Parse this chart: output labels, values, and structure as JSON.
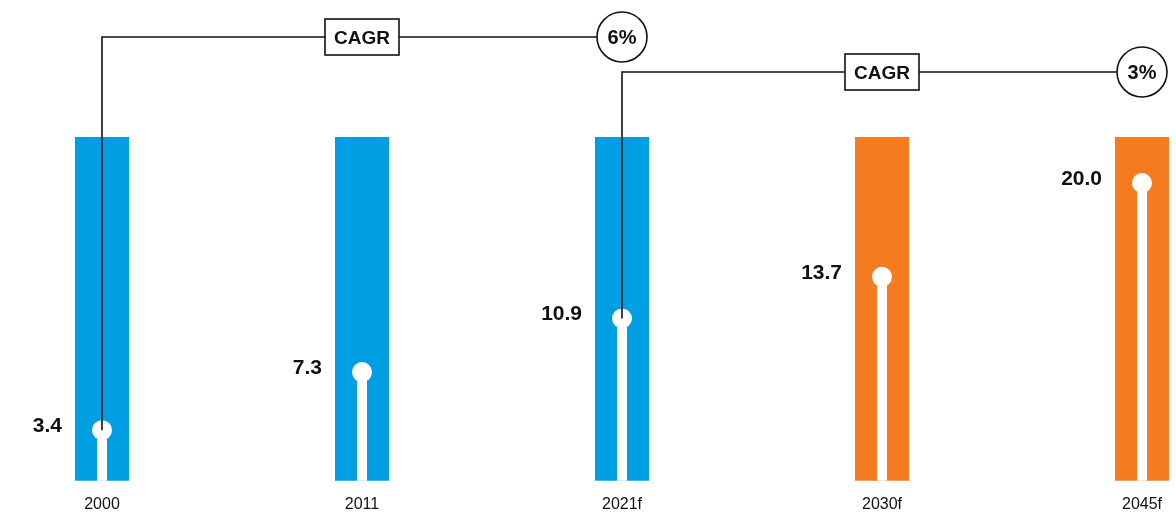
{
  "chart_data": {
    "type": "lollipop",
    "categories": [
      "2000",
      "2011",
      "2021f",
      "2030f",
      "2045f"
    ],
    "values": [
      3.4,
      7.3,
      10.9,
      13.7,
      20.0
    ],
    "value_labels": [
      "3.4",
      "7.3",
      "10.9",
      "13.7",
      "20.0"
    ],
    "color": "#ffffff",
    "bands": [
      {
        "axis": "x",
        "from": "2000",
        "to": "2000",
        "color": "#009fe3"
      },
      {
        "axis": "x",
        "from": "2011",
        "to": "2011",
        "color": "#009fe3"
      },
      {
        "axis": "x",
        "from": "2021f",
        "to": "2021f",
        "color": "#009fe3"
      },
      {
        "axis": "x",
        "from": "2030f",
        "to": "2030f",
        "color": "#f47b20"
      },
      {
        "axis": "x",
        "from": "2045f",
        "to": "2045f",
        "color": "#f47b20"
      }
    ],
    "tick_labels": "x",
    "legend": false,
    "annotations": [
      {
        "text": "CAGR",
        "x": "2000",
        "y": 3.4
      },
      "6%",
      {
        "text": "CAGR",
        "x": "2021f",
        "y": 10.9
      },
      "3%"
    ]
  }
}
